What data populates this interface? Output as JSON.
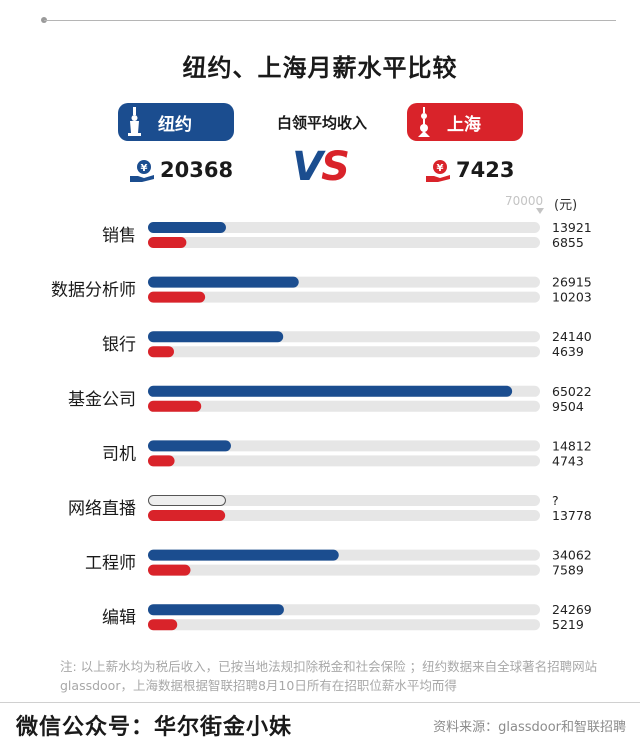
{
  "title": "纽约、上海月薪水平比较",
  "header": {
    "ny_label": "纽约",
    "sh_label": "上海",
    "avg_label": "白领平均收入",
    "vs_v": "V",
    "vs_s": "S",
    "ny_income": "20368",
    "sh_income": "7423",
    "scale_max_label": "70000",
    "unit": "(元)"
  },
  "colors": {
    "ny": "#1b4d8f",
    "sh": "#d9232a",
    "track": "#e6e6e6"
  },
  "chart_data": {
    "type": "bar",
    "orientation": "horizontal",
    "xlim": [
      0,
      70000
    ],
    "categories": [
      "销售",
      "数据分析师",
      "银行",
      "基金公司",
      "司机",
      "网络直播",
      "工程师",
      "编辑"
    ],
    "series": [
      {
        "name": "纽约",
        "values": [
          13921,
          26915,
          24140,
          65022,
          14812,
          null,
          34062,
          24269
        ],
        "labels": [
          "13921",
          "26915",
          "24140",
          "65022",
          "14812",
          "?",
          "34062",
          "24269"
        ]
      },
      {
        "name": "上海",
        "values": [
          6855,
          10203,
          4639,
          9504,
          4743,
          13778,
          7589,
          5219
        ],
        "labels": [
          "6855",
          "10203",
          "4639",
          "9504",
          "4743",
          "13778",
          "7589",
          "5219"
        ]
      }
    ],
    "unknown_bar_value": 13921
  },
  "note": "注: 以上薪水均为税后收入，已按当地法规扣除税金和社会保险 ；纽约数据来自全球著名招聘网站glassdoor，上海数据根据智联招聘8月10日所有在招职位薪水平均而得",
  "footer": {
    "left": "微信公众号：华尔街金小妹",
    "right": "资料来源：glassdoor和智联招聘"
  }
}
